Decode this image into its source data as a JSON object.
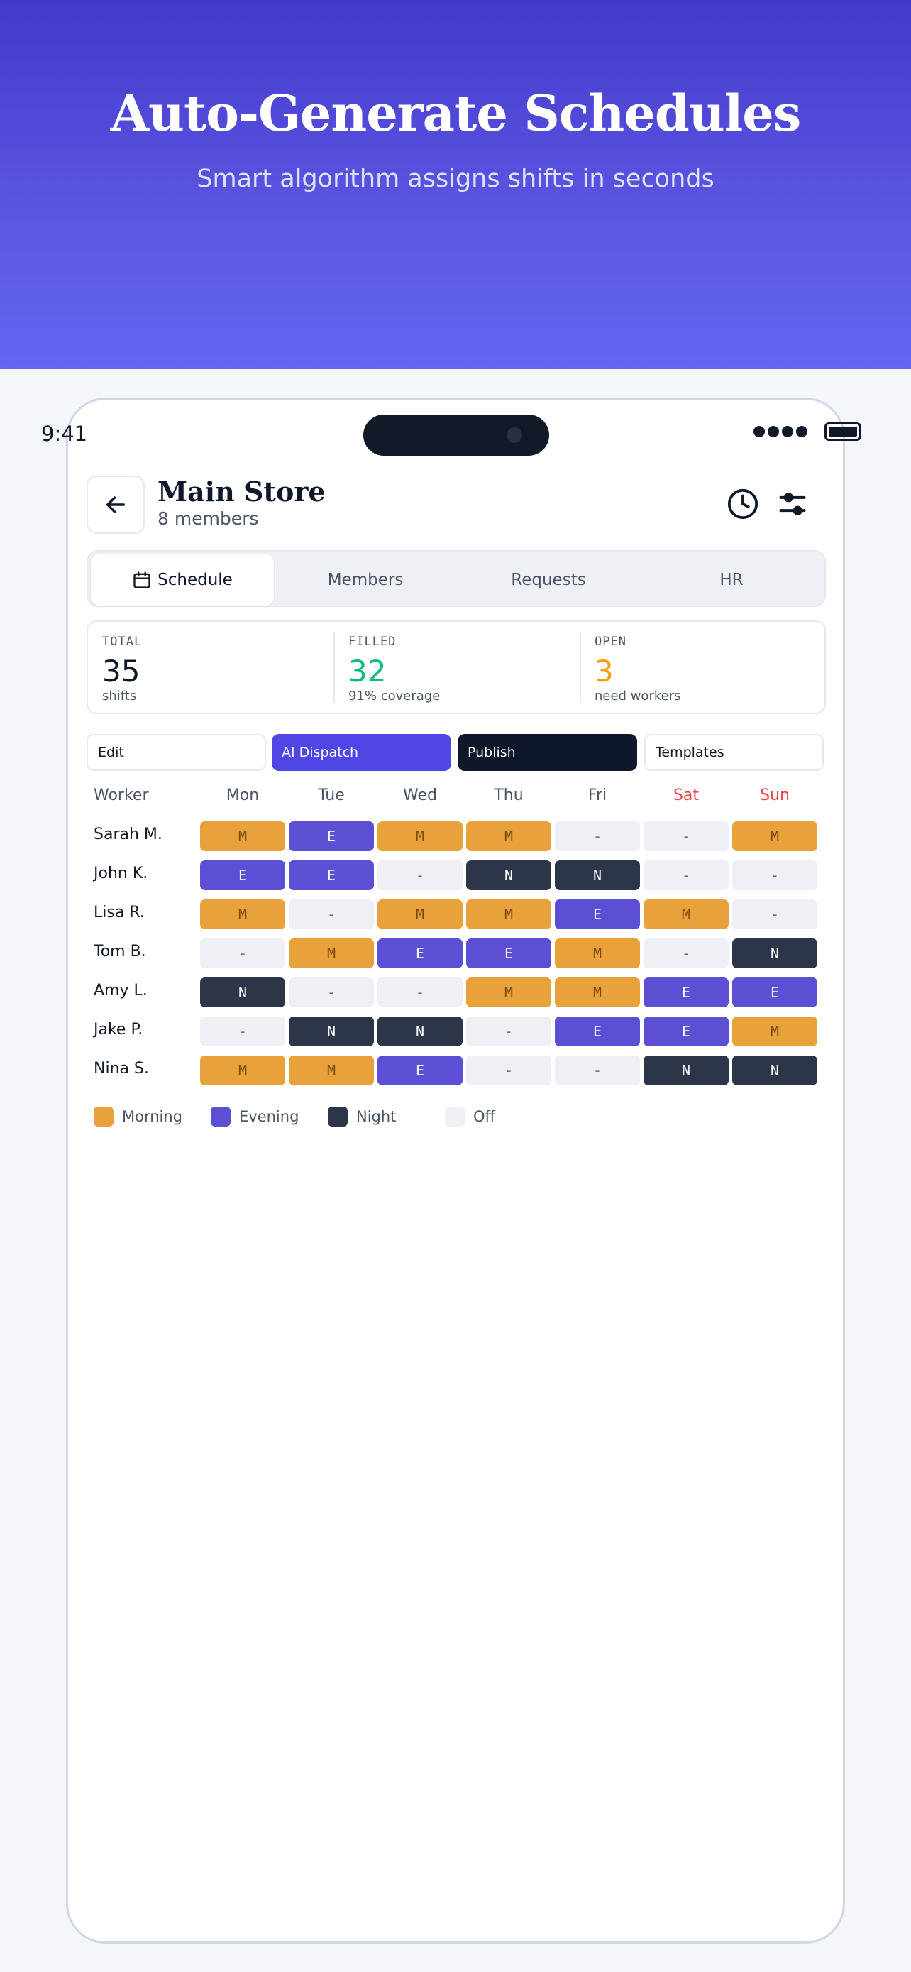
{
  "hero": {
    "title": "Auto-Generate Schedules",
    "subtitle": "Smart algorithm assigns shifts in seconds"
  },
  "status_bar": {
    "time": "9:41"
  },
  "header": {
    "title": "Main Store",
    "subtitle": "8 members",
    "icons": [
      "back-arrow-icon",
      "clock-icon",
      "sliders-icon"
    ]
  },
  "tabs": [
    {
      "label": "Schedule",
      "active": true,
      "icon": "calendar-icon"
    },
    {
      "label": "Members",
      "active": false
    },
    {
      "label": "Requests",
      "active": false
    },
    {
      "label": "HR",
      "active": false
    }
  ],
  "stats": [
    {
      "label": "TOTAL",
      "value": "35",
      "note": "shifts",
      "color": "#111827"
    },
    {
      "label": "FILLED",
      "value": "32",
      "note": "91% coverage",
      "color": "#10b981"
    },
    {
      "label": "OPEN",
      "value": "3",
      "note": "need workers",
      "color": "#f59e0b"
    }
  ],
  "actions": [
    {
      "label": "Edit",
      "style": "light"
    },
    {
      "label": "AI Dispatch",
      "style": "ai"
    },
    {
      "label": "Publish",
      "style": "dark"
    },
    {
      "label": "Templates",
      "style": "light"
    }
  ],
  "schedule": {
    "worker_header": "Worker",
    "days": [
      {
        "label": "Mon",
        "weekend": false
      },
      {
        "label": "Tue",
        "weekend": false
      },
      {
        "label": "Wed",
        "weekend": false
      },
      {
        "label": "Thu",
        "weekend": false
      },
      {
        "label": "Fri",
        "weekend": false
      },
      {
        "label": "Sat",
        "weekend": true
      },
      {
        "label": "Sun",
        "weekend": true
      }
    ],
    "rows": [
      {
        "name": "Sarah M.",
        "shifts": [
          "M",
          "E",
          "M",
          "M",
          "-",
          "-",
          "M"
        ]
      },
      {
        "name": "John K.",
        "shifts": [
          "E",
          "E",
          "-",
          "N",
          "N",
          "-",
          "-"
        ]
      },
      {
        "name": "Lisa R.",
        "shifts": [
          "M",
          "-",
          "M",
          "M",
          "E",
          "M",
          "-"
        ]
      },
      {
        "name": "Tom B.",
        "shifts": [
          "-",
          "M",
          "E",
          "E",
          "M",
          "-",
          "N"
        ]
      },
      {
        "name": "Amy L.",
        "shifts": [
          "N",
          "-",
          "-",
          "M",
          "M",
          "E",
          "E"
        ]
      },
      {
        "name": "Jake P.",
        "shifts": [
          "-",
          "N",
          "N",
          "-",
          "E",
          "E",
          "M"
        ]
      },
      {
        "name": "Nina S.",
        "shifts": [
          "M",
          "M",
          "E",
          "-",
          "-",
          "N",
          "N"
        ]
      }
    ]
  },
  "legend": [
    {
      "label": "Morning",
      "color": "#e9a23b"
    },
    {
      "label": "Evening",
      "color": "#5b4fd3"
    },
    {
      "label": "Night",
      "color": "#2d3648"
    },
    {
      "label": "Off",
      "color": "#eef0f5"
    }
  ]
}
